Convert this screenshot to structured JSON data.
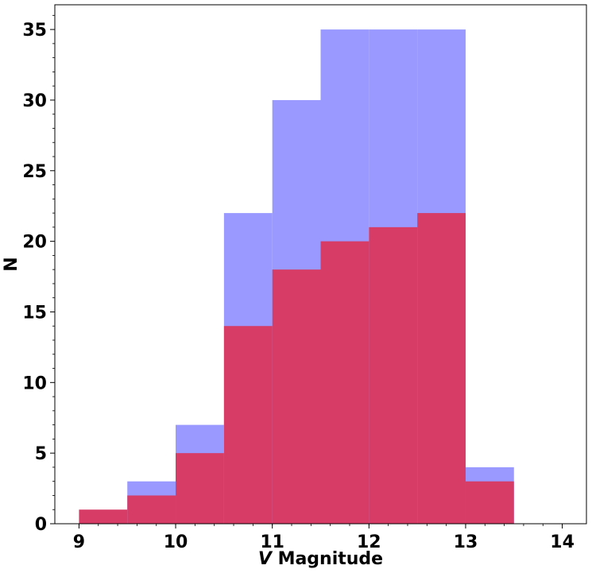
{
  "chart_data": {
    "type": "bar",
    "subtype": "overlapping-histogram",
    "bin_edges": [
      9,
      9.5,
      10,
      10.5,
      11,
      11.5,
      12,
      12.5,
      13,
      13.5
    ],
    "series": [
      {
        "values": [
          0,
          3,
          7,
          22,
          30,
          35,
          35,
          35,
          4
        ],
        "color": "#9999ff"
      },
      {
        "values": [
          1,
          2,
          5,
          14,
          18,
          20,
          21,
          22,
          3
        ],
        "color": "#d63c66"
      }
    ],
    "xlabel": "V Magnitude",
    "xlabel_italic_part": "V",
    "xlabel_rest": " Magnitude",
    "ylabel": "N",
    "xlim": [
      8.75,
      14.25
    ],
    "ylim": [
      0,
      36.75
    ],
    "xticks": [
      9,
      10,
      11,
      12,
      13,
      14
    ],
    "yticks": [
      0,
      5,
      10,
      15,
      20,
      25,
      30,
      35
    ],
    "xtick_labels": [
      "9",
      "10",
      "11",
      "12",
      "13",
      "14"
    ],
    "ytick_labels": [
      "0",
      "5",
      "10",
      "15",
      "20",
      "25",
      "30",
      "35"
    ],
    "grid": false,
    "legend": "none"
  }
}
